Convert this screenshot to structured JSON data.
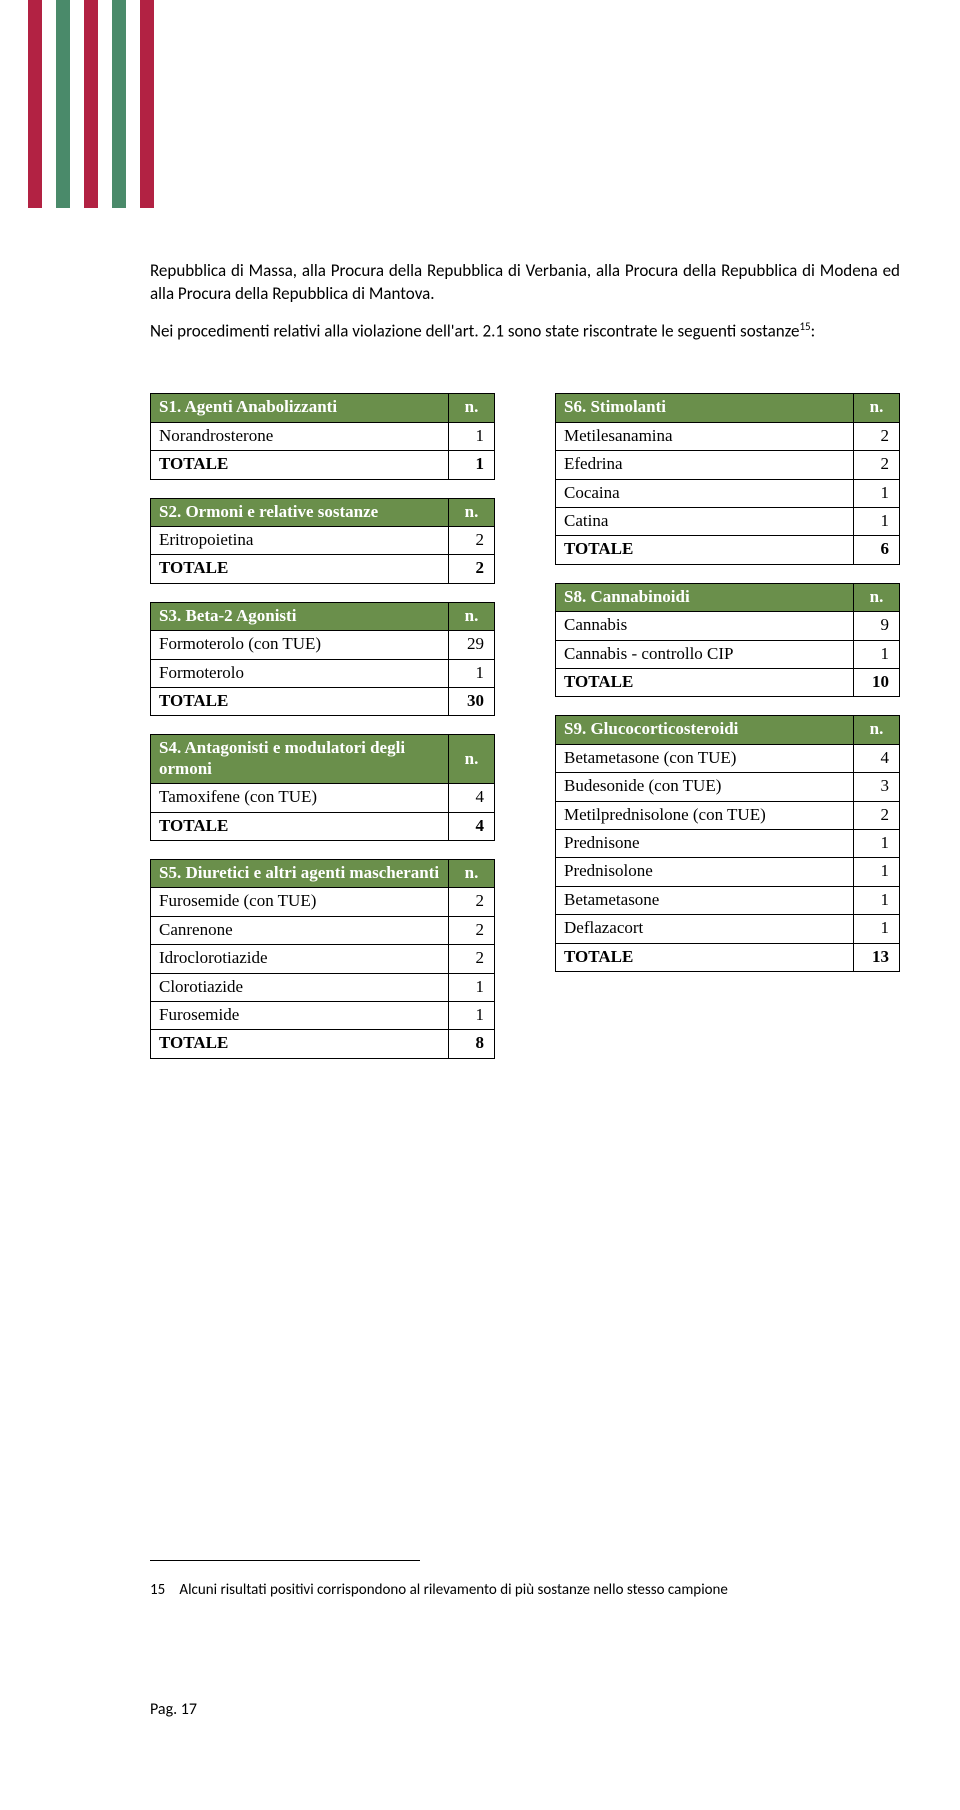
{
  "stripes": [
    "#b22243",
    "#4a8a6a",
    "#b22243",
    "#4a8a6a",
    "#b22243"
  ],
  "intro": {
    "p1": "Repubblica di Massa, alla Procura della Repubblica di Verbania, alla Procura della Repubblica di Modena ed alla Procura della Repubblica di Mantova.",
    "p2a": "Nei procedimenti relativi alla violazione dell'art. 2.1 sono state riscontrate le seguenti sostanze",
    "p2sup": "15",
    "p2b": ":"
  },
  "leftTables": [
    {
      "header": "S1.   Agenti Anabolizzanti",
      "headerN": "n.",
      "rows": [
        [
          "Norandrosterone",
          "1"
        ]
      ],
      "total": [
        "TOTALE",
        "1"
      ]
    },
    {
      "header": "S2.   Ormoni e relative sostanze",
      "headerN": "n.",
      "rows": [
        [
          "Eritropoietina",
          "2"
        ]
      ],
      "total": [
        "TOTALE",
        "2"
      ]
    },
    {
      "header": "S3.   Beta-2  Agonisti",
      "headerN": "n.",
      "rows": [
        [
          "Formoterolo (con TUE)",
          "29"
        ],
        [
          "Formoterolo",
          "1"
        ]
      ],
      "total": [
        "TOTALE",
        "30"
      ]
    },
    {
      "header": "S4.  Antagonisti e modulatori degli ormoni",
      "headerN": "n.",
      "rows": [
        [
          "Tamoxifene (con TUE)",
          "4"
        ]
      ],
      "total": [
        "TOTALE",
        "4"
      ]
    },
    {
      "header": "S5.   Diuretici e altri agenti mascheranti",
      "headerN": "n.",
      "rows": [
        [
          "Furosemide (con TUE)",
          "2"
        ],
        [
          "Canrenone",
          "2"
        ],
        [
          "Idroclorotiazide",
          "2"
        ],
        [
          "Clorotiazide",
          "1"
        ],
        [
          "Furosemide",
          "1"
        ]
      ],
      "total": [
        "TOTALE",
        "8"
      ]
    }
  ],
  "rightTables": [
    {
      "header": "S6.   Stimolanti",
      "headerN": "n.",
      "rows": [
        [
          "Metilesanamina",
          "2"
        ],
        [
          "Efedrina",
          "2"
        ],
        [
          "Cocaina",
          "1"
        ],
        [
          "Catina",
          "1"
        ]
      ],
      "total": [
        "TOTALE",
        "6"
      ]
    },
    {
      "header": "S8.   Cannabinoidi",
      "headerN": "n.",
      "rows": [
        [
          "Cannabis",
          "9"
        ],
        [
          "Cannabis - controllo CIP",
          "1"
        ]
      ],
      "total": [
        "TOTALE",
        "10"
      ]
    },
    {
      "header": "S9.   Glucocorticosteroidi",
      "headerN": "n.",
      "rows": [
        [
          "Betametasone (con TUE)",
          "4"
        ],
        [
          "Budesonide (con TUE)",
          "3"
        ],
        [
          "Metilprednisolone (con TUE)",
          "2"
        ],
        [
          "Prednisone",
          "1"
        ],
        [
          "Prednisolone",
          "1"
        ],
        [
          "Betametasone",
          "1"
        ],
        [
          "Deflazacort",
          "1"
        ]
      ],
      "total": [
        "TOTALE",
        "13"
      ]
    }
  ],
  "footnote": {
    "num": "15",
    "text": "Alcuni risultati positivi corrispondono al rilevamento di più sostanze nello stesso campione"
  },
  "pageNumber": "Pag. 17"
}
